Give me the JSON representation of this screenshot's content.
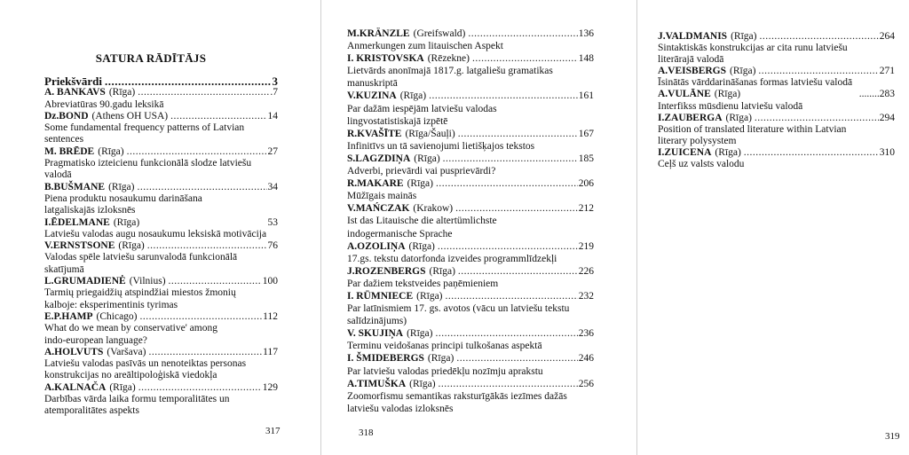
{
  "title": "SATURA RĀDĪTĀJS",
  "pages": [
    {
      "number": "317",
      "entries": [
        {
          "author": "Priekšvārdi",
          "place": "",
          "page": "3",
          "lines": [],
          "preface": true
        },
        {
          "author": "A. BANKAVS",
          "place": "(Rīga)",
          "page": ".7",
          "lines": [
            "Abreviatūras 90.gadu leksikā"
          ]
        },
        {
          "author": "Dz.BOND",
          "place": "(Athens OH USA)",
          "page": "14",
          "lines": [
            "Some fundamental frequency patterns of Latvian",
            "sentences"
          ]
        },
        {
          "author": "M. BRĒDE",
          "place": "(Rīga)",
          "page": "27",
          "lines": [
            "Pragmatisko izteicienu funkcionālā slodze latviešu",
            "valodā"
          ]
        },
        {
          "author": "B.BUŠMANE",
          "place": "(Rīga)",
          "page": "34",
          "lines": [
            "Piena produktu nosaukumu darināšana",
            "latgaliskajās izloksnēs"
          ]
        },
        {
          "author": "I.ĒDELMANE",
          "place": "(Rīga)",
          "page": "53",
          "lines": [
            "Latviešu valodas augu nosaukumu leksiskā motivācija"
          ],
          "nodots": true
        },
        {
          "author": "V.ERNSTSONE",
          "place": "(Rīga)",
          "page": "76",
          "lines": [
            "Valodas spēle latviešu sarunvalodā funkcionālā",
            "skatījumā"
          ]
        },
        {
          "author": "L.GRUMADIENĖ",
          "place": "(Vilnius)",
          "page": "100",
          "lines": [
            "Tarmių priegaidžių atspindžiai miestos žmonių",
            "kalboje: eksperimentinis tyrimas"
          ]
        },
        {
          "author": "E.P.HAMP",
          "place": "(Chicago)",
          "page": "112",
          "lines": [
            "What do we mean by conservative' among",
            "indo-european language?"
          ]
        },
        {
          "author": "A.HOLVUTS",
          "place": "(Varšava)",
          "page": "117",
          "lines": [
            "Latviešu valodas pasīvās un nenoteiktas personas",
            "konstrukcijas no areāltipoloģiskā viedokļa"
          ]
        },
        {
          "author": "A.KALNAČA",
          "place": "(Rīga)",
          "page": "129",
          "lines": [
            "Darbības vārda laika formu temporalitātes un",
            "atemporalitātes aspekts"
          ]
        }
      ]
    },
    {
      "number": "318",
      "entries": [
        {
          "author": "M.KRÄNZLE",
          "place": "(Greifswald)",
          "page": "136",
          "lines": [
            "Anmerkungen zum litauischen Aspekt"
          ]
        },
        {
          "author": "I.  KRISTOVSKA",
          "place": "(Rēzekne)",
          "page": "148",
          "lines": [
            "Lietvārds anonīmajā 1817.g. latgaliešu gramatikas",
            "manuskriptā"
          ]
        },
        {
          "author": "V.KUZINA",
          "place": "(Rīga)",
          "page": "161",
          "lines": [
            "Par dažām iespējām latviešu valodas",
            "lingvostatistiskajā izpētē"
          ]
        },
        {
          "author": "R.KVAŠĪTE",
          "place": "(Rīga/Šauļi)",
          "page": "167",
          "lines": [
            "Infinitīvs un tā savienojumi lietišķajos tekstos"
          ]
        },
        {
          "author": "S.LAGZDIŅA",
          "place": "(Rīga)",
          "page": "185",
          "lines": [
            "Adverbi, prievārdi vai puspriеvārdi?"
          ]
        },
        {
          "author": "R.MAKARE",
          "place": "(Rīga)",
          "page": "206",
          "lines": [
            "Mūžīgais mainās"
          ]
        },
        {
          "author": "V.MAŃCZAK",
          "place": "(Krakow)",
          "page": "212",
          "lines": [
            "Ist das Litauische die altertümlichste",
            "indogermanische Sprache"
          ]
        },
        {
          "author": "A.OZOLIŅA",
          "place": "(Rīga)",
          "page": "219",
          "lines": [
            "17.gs. tekstu datorfonda izveides programmlīdzekļi"
          ]
        },
        {
          "author": "J.ROZENBERGS",
          "place": "(Rīga)",
          "page": "226",
          "lines": [
            "Par dažiem tekstveides paņēmieniem"
          ]
        },
        {
          "author": "I.  RŪMNIECE",
          "place": " (Rīga)",
          "page": "232",
          "lines": [
            "Par latīnismiem 17. gs. avotos (vācu un latviešu tekstu",
            "salīdzinājums)"
          ]
        },
        {
          "author": "V. SKUJIŅA",
          "place": "(Rīga)",
          "page": "236",
          "lines": [
            "Terminu veidošanas principi tulkošanas aspektā"
          ]
        },
        {
          "author": "I.  ŠMIDEBERGS",
          "place": "(Rīga)",
          "page": "246",
          "lines": [
            "Par latviešu valodas priedēkļu nozīmju aprakstu"
          ]
        },
        {
          "author": "A.TIMUŠKA",
          "place": "(Rīga)",
          "page": "256",
          "lines": [
            "Zoomorfismu semantikas raksturīgākās iezīmes dažās",
            "latviešu valodas izloksnēs"
          ]
        }
      ]
    },
    {
      "number": "319",
      "entries": [
        {
          "author": "J.VALDMANIS",
          "place": "(Rīga)",
          "page": "264",
          "lines": [
            "Sintaktiskās konstrukcijas ar cita runu latviešu",
            "literārajā valodā"
          ]
        },
        {
          "author": "A.VEISBERGS",
          "place": "(Rīga)",
          "page": "271",
          "lines": [
            "Īsinātās  vārddarināšanas formas latviešu valodā"
          ]
        },
        {
          "author": "A.VULĀNE",
          "place": "(Rīga)",
          "page": "........283",
          "lines": [
            "Interfikss mūsdienu latviešu valodā"
          ],
          "nodots": true
        },
        {
          "author": "I.ZAUBERGA",
          "place": "(Rīga)",
          "page": "294",
          "lines": [
            "Position of translated literature within Latvian",
            "literary polysystem"
          ]
        },
        {
          "author": "I.ZUICENA",
          "place": "(Rīga)",
          "page": "310",
          "lines": [
            "Ceļš uz valsts valodu"
          ]
        }
      ]
    }
  ]
}
